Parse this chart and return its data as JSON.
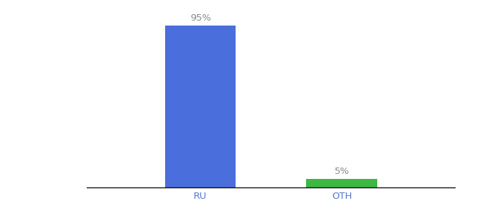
{
  "categories": [
    "RU",
    "OTH"
  ],
  "values": [
    95,
    5
  ],
  "bar_colors": [
    "#4a6edb",
    "#3cb843"
  ],
  "label_texts": [
    "95%",
    "5%"
  ],
  "ylim": [
    0,
    100
  ],
  "background_color": "#ffffff",
  "bar_width": 0.5,
  "label_fontsize": 9.5,
  "tick_fontsize": 9.5,
  "label_color": "#888888",
  "tick_color": "#5577cc",
  "x_positions": [
    1.0,
    2.0
  ],
  "xlim": [
    0.2,
    2.8
  ]
}
